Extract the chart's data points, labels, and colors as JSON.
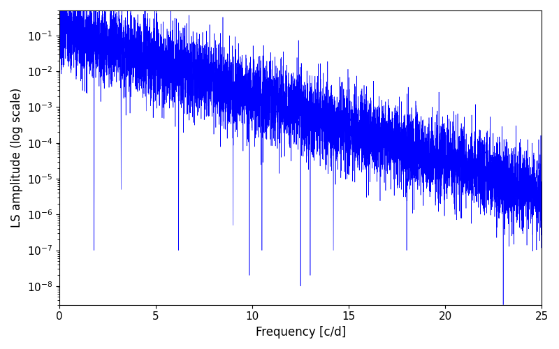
{
  "xlabel": "Frequency [c/d]",
  "ylabel": "LS amplitude (log scale)",
  "line_color": "#0000ff",
  "xlim": [
    0,
    25
  ],
  "ylim": [
    3e-09,
    0.5
  ],
  "freq_max": 25.0,
  "n_points": 8000,
  "background_color": "#ffffff",
  "figsize": [
    8.0,
    5.0
  ],
  "dpi": 100,
  "seed": 7,
  "linewidth": 0.4
}
